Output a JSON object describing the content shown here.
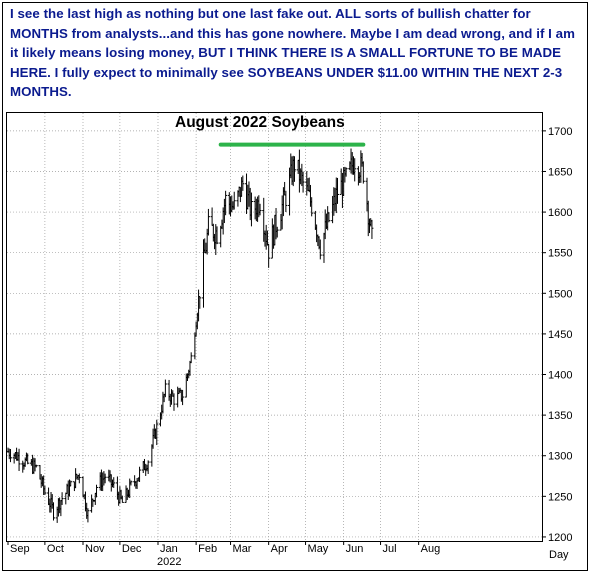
{
  "commentary": {
    "text": "I see the last high as nothing but one last fake out. ALL sorts of bullish chatter for MONTHS from analysts...and this has gone nowhere. Maybe I am dead wrong, and if I am it likely means losing money, BUT I THINK THERE IS A SMALL FORTUNE TO BE MADE HERE. I fully expect to minimally see SOYBEANS UNDER $11.00 WITHIN THE NEXT 2-3 MONTHS.",
    "color": "#0b1b8f"
  },
  "chart_data": {
    "type": "ohlc-bar",
    "title": "August 2022 Soybeans",
    "xlabel": "Day",
    "year_label": "2022",
    "x_tick_labels": [
      "Sep",
      "Oct",
      "Nov",
      "Dec",
      "Jan",
      "Feb",
      "Mar",
      "Apr",
      "May",
      "Jun",
      "Jul",
      "Aug"
    ],
    "y_ticks": [
      1200,
      1250,
      1300,
      1350,
      1400,
      1450,
      1500,
      1550,
      1600,
      1650,
      1700
    ],
    "ylim": [
      1195,
      1722
    ],
    "resistance_line": {
      "value": 1683,
      "from": "2022-02-21",
      "to": "2022-06-17",
      "color": "#2db34a"
    },
    "price_color": "#000000",
    "grid": true,
    "closes_weekly": [
      {
        "week": "2021-09-03",
        "close": 1305
      },
      {
        "week": "2021-09-10",
        "close": 1298
      },
      {
        "week": "2021-09-17",
        "close": 1290
      },
      {
        "week": "2021-09-24",
        "close": 1285
      },
      {
        "week": "2021-10-01",
        "close": 1255
      },
      {
        "week": "2021-10-08",
        "close": 1232
      },
      {
        "week": "2021-10-15",
        "close": 1248
      },
      {
        "week": "2021-10-22",
        "close": 1262
      },
      {
        "week": "2021-10-29",
        "close": 1278
      },
      {
        "week": "2021-11-05",
        "close": 1228
      },
      {
        "week": "2021-11-12",
        "close": 1262
      },
      {
        "week": "2021-11-19",
        "close": 1275
      },
      {
        "week": "2021-11-26",
        "close": 1262
      },
      {
        "week": "2021-12-03",
        "close": 1242
      },
      {
        "week": "2021-12-10",
        "close": 1262
      },
      {
        "week": "2021-12-17",
        "close": 1278
      },
      {
        "week": "2021-12-24",
        "close": 1295
      },
      {
        "week": "2021-12-31",
        "close": 1335
      },
      {
        "week": "2022-01-07",
        "close": 1380
      },
      {
        "week": "2022-01-14",
        "close": 1370
      },
      {
        "week": "2022-01-21",
        "close": 1375
      },
      {
        "week": "2022-01-28",
        "close": 1420
      },
      {
        "week": "2022-02-04",
        "close": 1505
      },
      {
        "week": "2022-02-11",
        "close": 1580
      },
      {
        "week": "2022-02-18",
        "close": 1575
      },
      {
        "week": "2022-02-25",
        "close": 1615
      },
      {
        "week": "2022-03-04",
        "close": 1605
      },
      {
        "week": "2022-03-11",
        "close": 1635
      },
      {
        "week": "2022-03-18",
        "close": 1600
      },
      {
        "week": "2022-03-25",
        "close": 1615
      },
      {
        "week": "2022-04-01",
        "close": 1555
      },
      {
        "week": "2022-04-08",
        "close": 1590
      },
      {
        "week": "2022-04-15",
        "close": 1620
      },
      {
        "week": "2022-04-22",
        "close": 1660
      },
      {
        "week": "2022-04-29",
        "close": 1635
      },
      {
        "week": "2022-05-06",
        "close": 1610
      },
      {
        "week": "2022-05-13",
        "close": 1560
      },
      {
        "week": "2022-05-20",
        "close": 1590
      },
      {
        "week": "2022-05-27",
        "close": 1625
      },
      {
        "week": "2022-06-03",
        "close": 1640
      },
      {
        "week": "2022-06-10",
        "close": 1665
      },
      {
        "week": "2022-06-17",
        "close": 1650
      },
      {
        "week": "2022-06-24",
        "close": 1565
      }
    ]
  }
}
